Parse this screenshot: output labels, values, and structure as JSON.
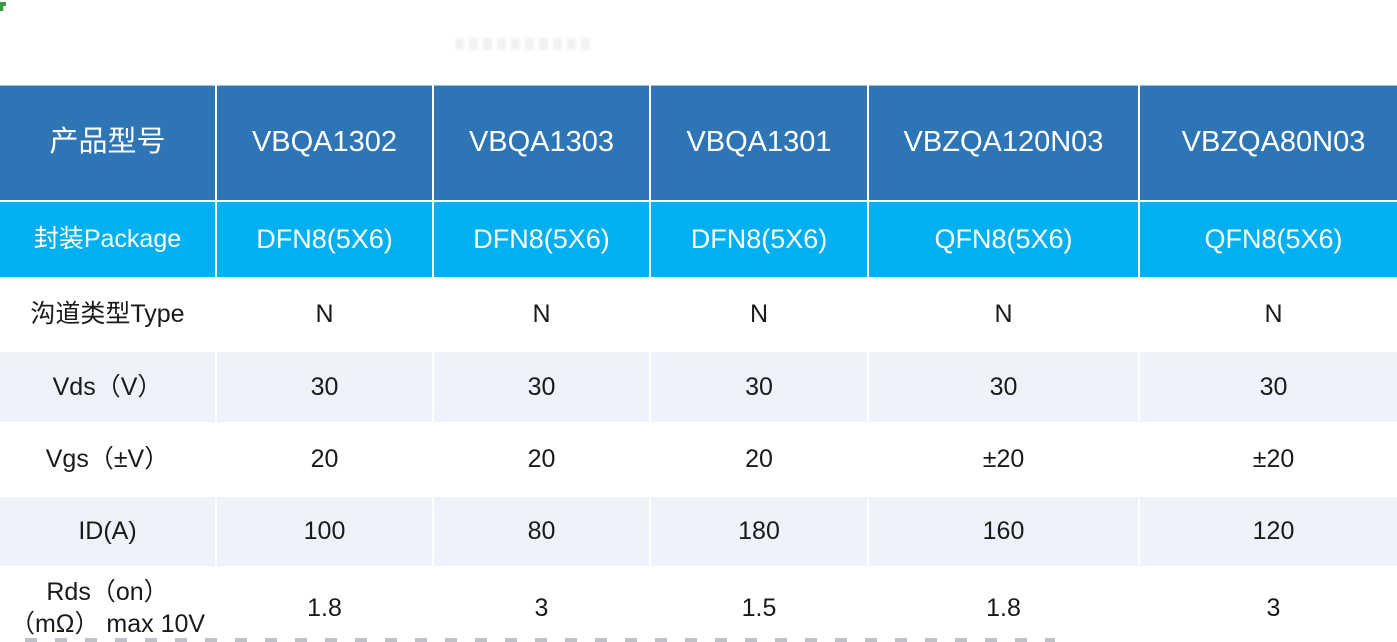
{
  "decorations": {
    "corner_mark_color": "#3a9a46"
  },
  "colors": {
    "header_bg": "#2e75b6",
    "package_row_bg": "#00b0f0",
    "tint_row_bg": "#eef3fb",
    "white_row_bg": "#ffffff",
    "header_text": "#ffffff",
    "body_text": "#1a1a1a"
  },
  "table": {
    "header": {
      "label": "产品型号",
      "products": [
        "VBQA1302",
        "VBQA1303",
        "VBQA1301",
        "VBZQA120N03",
        "VBZQA80N03"
      ]
    },
    "rows": [
      {
        "label": "封装Package",
        "values": [
          "DFN8(5X6)",
          "DFN8(5X6)",
          "DFN8(5X6)",
          "QFN8(5X6)",
          "QFN8(5X6)"
        ]
      },
      {
        "label": "沟道类型Type",
        "values": [
          "N",
          "N",
          "N",
          "N",
          "N"
        ]
      },
      {
        "label": "Vds（V）",
        "values": [
          "30",
          "30",
          "30",
          "30",
          "30"
        ]
      },
      {
        "label": "Vgs（±V）",
        "values": [
          "20",
          "20",
          "20",
          "±20",
          "±20"
        ]
      },
      {
        "label": "ID(A)",
        "values": [
          "100",
          "80",
          "180",
          "160",
          "120"
        ]
      },
      {
        "label": "Rds（on） （mΩ） max 10V",
        "values": [
          "1.8",
          "3",
          "1.5",
          "1.8",
          "3"
        ]
      }
    ]
  }
}
